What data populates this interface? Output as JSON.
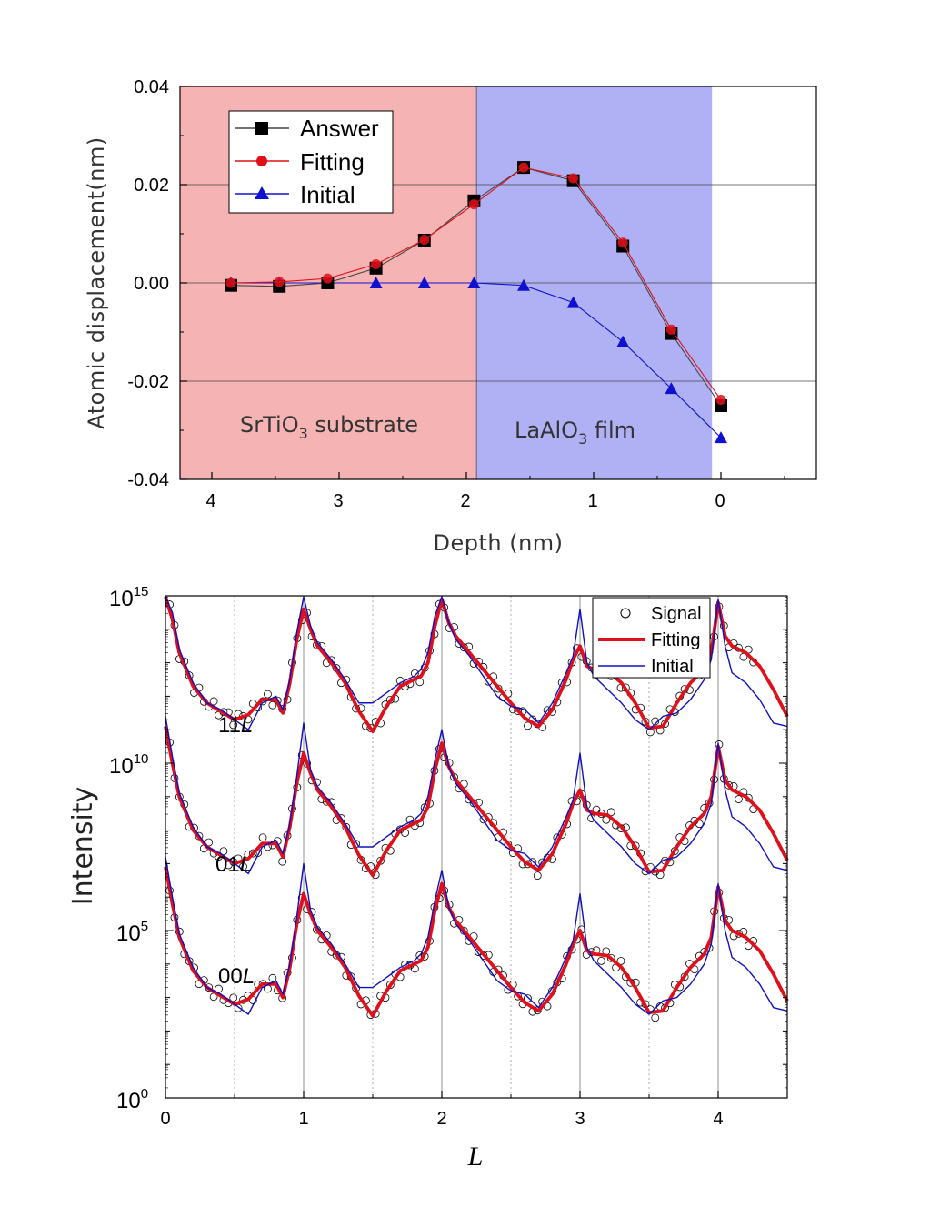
{
  "chart_data": [
    {
      "type": "line",
      "xlabel": "Depth (nm)",
      "ylabel": "Atomic displacement(nm)",
      "xlim": [
        4.25,
        -0.75
      ],
      "ylim": [
        -0.04,
        0.04
      ],
      "x_ticks": [
        "4",
        "3",
        "2",
        "1",
        "0"
      ],
      "y_ticks": [
        "0.04",
        "0.02",
        "0.00",
        "-0.02",
        "-0.04"
      ],
      "regions": [
        {
          "label_prefix": "SrTiO",
          "label_sub": "3",
          "label_suffix": " substrate",
          "from": 4.25,
          "to": 1.92,
          "color": "#f5b3b3"
        },
        {
          "label_prefix": "LaAlO",
          "label_sub": "3",
          "label_suffix": " film",
          "from": 1.92,
          "to": 0.07,
          "color": "#b0b1f5"
        }
      ],
      "series": [
        {
          "name": "Answer",
          "marker": "square",
          "color": "#000000",
          "line_color": "#444444",
          "x": [
            3.85,
            3.47,
            3.09,
            2.71,
            2.33,
            1.94,
            1.55,
            1.16,
            0.77,
            0.39,
            0.0
          ],
          "values": [
            -0.0005,
            -0.0007,
            0.0,
            0.003,
            0.0087,
            0.0167,
            0.0235,
            0.0208,
            0.0075,
            -0.0103,
            -0.025
          ]
        },
        {
          "name": "Fitting",
          "marker": "circle",
          "color": "#e0101a",
          "line_color": "#e0101a",
          "x": [
            3.85,
            3.47,
            3.09,
            2.71,
            2.33,
            1.94,
            1.55,
            1.16,
            0.77,
            0.39,
            0.0
          ],
          "values": [
            0.0,
            0.0002,
            0.0009,
            0.0038,
            0.0088,
            0.016,
            0.0235,
            0.0213,
            0.0082,
            -0.0095,
            -0.0238
          ]
        },
        {
          "name": "Initial",
          "marker": "triangle",
          "color": "#1010d0",
          "line_color": "#1010d0",
          "x": [
            3.85,
            3.47,
            3.09,
            2.71,
            2.33,
            1.94,
            1.55,
            1.16,
            0.77,
            0.39,
            0.0
          ],
          "values": [
            0.0,
            0.0,
            0.0,
            0.0,
            0.0,
            0.0,
            -0.0005,
            -0.004,
            -0.012,
            -0.0215,
            -0.0315
          ]
        }
      ]
    },
    {
      "type": "line",
      "yscale": "log",
      "xlabel": "L",
      "ylabel": "Intensity",
      "xlim": [
        0,
        4.5
      ],
      "ylim_log10": [
        0,
        15
      ],
      "x_ticks": [
        "0",
        "1",
        "2",
        "3",
        "4"
      ],
      "y_ticks": [
        {
          "base": "10",
          "exp": "15",
          "log10": 15
        },
        {
          "base": "10",
          "exp": "10",
          "log10": 10
        },
        {
          "base": "10",
          "exp": "5",
          "log10": 5
        },
        {
          "base": "10",
          "exp": "0",
          "log10": 0
        }
      ],
      "legend": [
        "Signal",
        "Fitting",
        "Initial"
      ],
      "rods": [
        {
          "name_prefix": "11",
          "name_italic": "L",
          "offset_log10": 8.5
        },
        {
          "name_prefix": "01",
          "name_italic": "L",
          "offset_log10": 4.2
        },
        {
          "name_prefix": "00",
          "name_italic": "L",
          "offset_log10": 0
        }
      ],
      "base_profile_log10": {
        "L": [
          0.0,
          0.05,
          0.1,
          0.2,
          0.3,
          0.4,
          0.5,
          0.6,
          0.7,
          0.8,
          0.85,
          0.9,
          0.95,
          1.0,
          1.05,
          1.1,
          1.2,
          1.3,
          1.4,
          1.5,
          1.6,
          1.7,
          1.8,
          1.85,
          1.9,
          1.95,
          2.0,
          2.05,
          2.1,
          2.2,
          2.3,
          2.4,
          2.5,
          2.6,
          2.7,
          2.8,
          2.9,
          2.95,
          3.0,
          3.05,
          3.1,
          3.2,
          3.3,
          3.4,
          3.5,
          3.6,
          3.7,
          3.8,
          3.9,
          3.95,
          4.0,
          4.05,
          4.1,
          4.2,
          4.3,
          4.4,
          4.5
        ],
        "fitting": [
          6.9,
          5.8,
          4.8,
          3.8,
          3.3,
          3.05,
          2.8,
          2.95,
          3.4,
          3.4,
          3.0,
          3.9,
          5.2,
          6.1,
          5.5,
          5.0,
          4.5,
          3.9,
          3.05,
          2.45,
          3.2,
          3.8,
          4.0,
          4.1,
          4.5,
          5.6,
          6.4,
          5.7,
          5.3,
          4.8,
          4.3,
          3.8,
          3.3,
          2.85,
          2.6,
          3.1,
          4.0,
          4.6,
          5.0,
          4.4,
          4.3,
          4.25,
          3.9,
          3.3,
          2.55,
          2.6,
          3.3,
          3.9,
          4.3,
          4.8,
          6.3,
          5.3,
          5.0,
          4.8,
          4.4,
          3.7,
          2.9
        ],
        "initial": [
          7.2,
          6.0,
          4.9,
          3.9,
          3.3,
          3.1,
          2.8,
          2.5,
          3.3,
          3.5,
          3.1,
          4.0,
          5.4,
          7.0,
          5.6,
          5.1,
          4.6,
          4.0,
          3.3,
          3.3,
          3.6,
          3.9,
          4.1,
          4.3,
          4.8,
          5.9,
          6.8,
          5.7,
          5.2,
          4.7,
          4.1,
          3.5,
          3.2,
          3.1,
          2.7,
          3.3,
          4.2,
          4.7,
          6.1,
          4.5,
          4.1,
          3.7,
          3.3,
          2.8,
          2.5,
          2.9,
          3.0,
          3.4,
          4.0,
          4.6,
          6.4,
          5.0,
          4.2,
          3.9,
          3.4,
          2.7,
          2.6
        ]
      }
    }
  ]
}
